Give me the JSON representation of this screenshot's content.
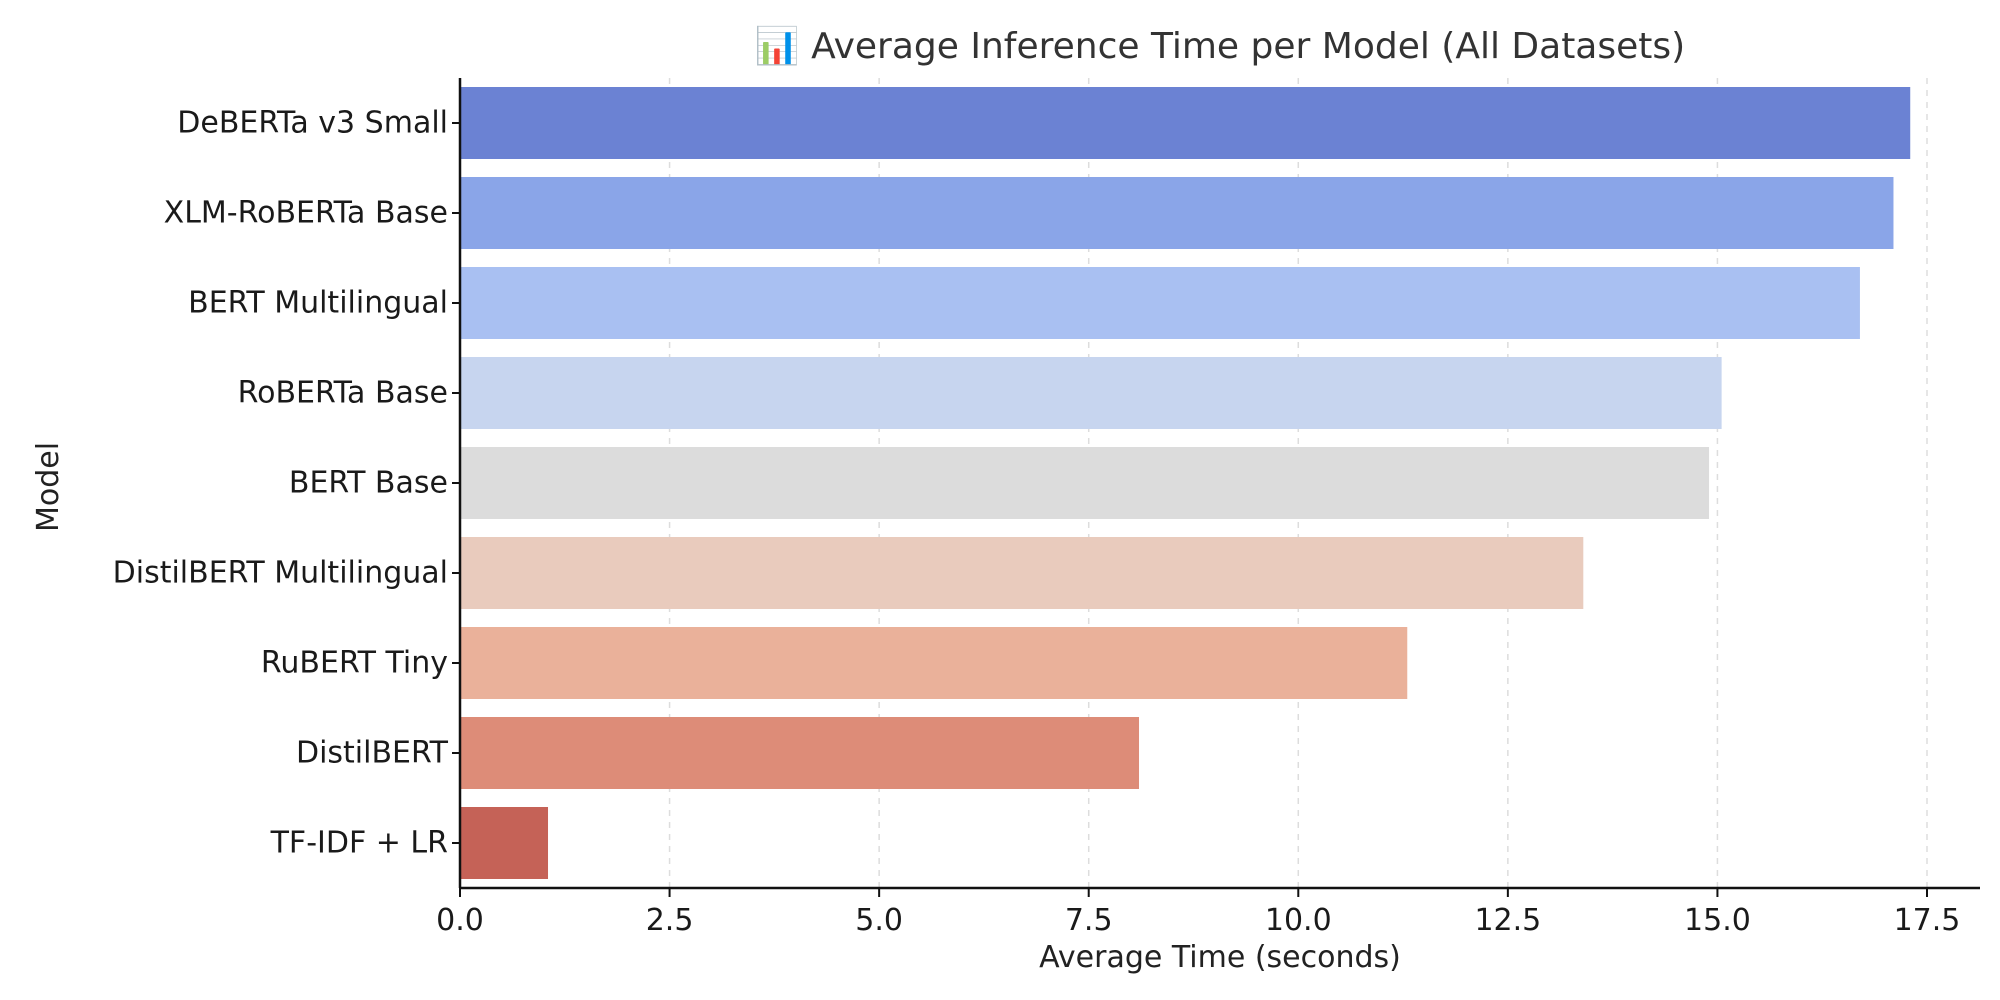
{
  "colors": {
    "axis": "#111111",
    "grid": "#dddddd",
    "bars": [
      "#6b82d3",
      "#8aa5e8",
      "#a9c0f2",
      "#c7d5ef",
      "#dcdcdc",
      "#e9cbbd",
      "#eab19a",
      "#dd8c78",
      "#c56257"
    ]
  },
  "chart_data": {
    "type": "bar",
    "orientation": "horizontal",
    "title": "📊 Average Inference Time per Model (All Datasets)",
    "xlabel": "Average Time (seconds)",
    "ylabel": "Model",
    "xlim": [
      0,
      18.2
    ],
    "xticks": [
      0.0,
      2.5,
      5.0,
      7.5,
      10.0,
      12.5,
      15.0,
      17.5
    ],
    "xtick_labels": [
      "0.0",
      "2.5",
      "5.0",
      "7.5",
      "10.0",
      "12.5",
      "15.0",
      "17.5"
    ],
    "grid": "x-dashed",
    "categories": [
      "DeBERTa v3 Small",
      "XLM-RoBERTa Base",
      "BERT Multilingual",
      "RoBERTa Base",
      "BERT Base",
      "DistilBERT Multilingual",
      "RuBERT Tiny",
      "DistilBERT",
      "TF-IDF + LR"
    ],
    "values": [
      17.3,
      17.1,
      16.7,
      15.05,
      14.9,
      13.4,
      11.3,
      8.1,
      1.05
    ]
  }
}
